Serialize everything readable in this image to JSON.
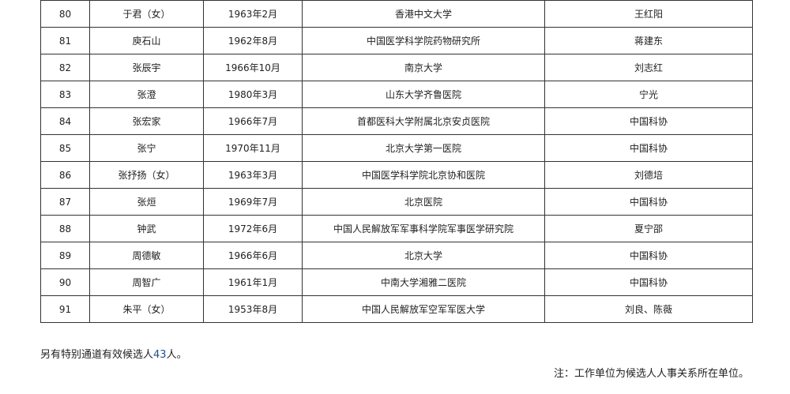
{
  "rows": [
    [
      "80",
      "于君（女）",
      "1963年2月",
      "香港中文大学",
      "王红阳"
    ],
    [
      "81",
      "庾石山",
      "1962年8月",
      "中国医学科学院药物研究所",
      "蒋建东"
    ],
    [
      "82",
      "张辰宇",
      "1966年10月",
      "南京大学",
      "刘志红"
    ],
    [
      "83",
      "张澄",
      "1980年3月",
      "山东大学齐鲁医院",
      "宁光"
    ],
    [
      "84",
      "张宏家",
      "1966年7月",
      "首都医科大学附属北京安贞医院",
      "中国科协"
    ],
    [
      "85",
      "张宁",
      "1970年11月",
      "北京大学第一医院",
      "中国科协"
    ],
    [
      "86",
      "张抒扬（女）",
      "1963年3月",
      "中国医学科学院北京协和医院",
      "刘德培"
    ],
    [
      "87",
      "张烜",
      "1969年7月",
      "北京医院",
      "中国科协"
    ],
    [
      "88",
      "钟武",
      "1972年6月",
      "中国人民解放军军事科学院军事医学研究院",
      "夏宁邵"
    ],
    [
      "89",
      "周德敏",
      "1966年6月",
      "北京大学",
      "中国科协"
    ],
    [
      "90",
      "周智广",
      "1961年1月",
      "中南大学湘雅二医院",
      "中国科协"
    ],
    [
      "91",
      "朱平（女）",
      "1953年8月",
      "中国人民解放军空军军医大学",
      "刘良、陈薇"
    ]
  ],
  "extra": {
    "prefix": "另有特别通道有效候选人",
    "count": "43",
    "suffix": "人。"
  },
  "note": "注：工作单位为候选人人事关系所在单位。"
}
